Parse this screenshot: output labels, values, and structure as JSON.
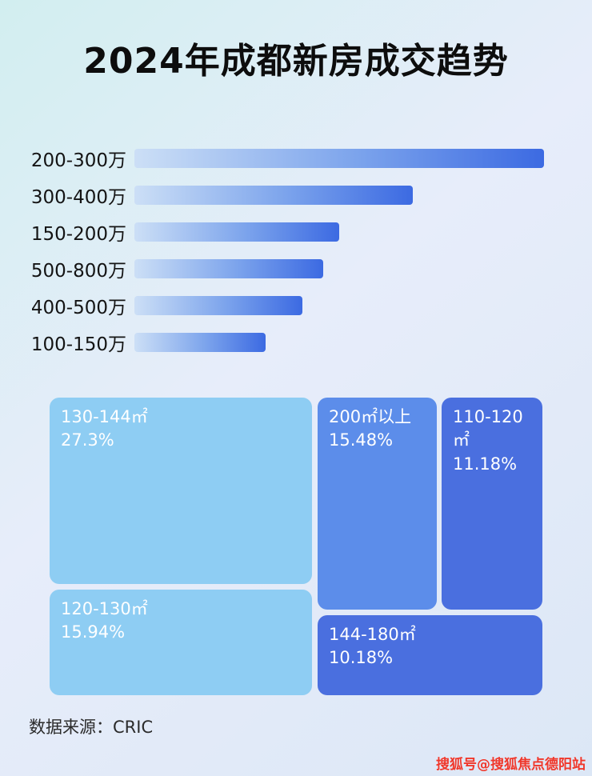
{
  "header": {
    "title": "2024年成都新房成交趋势"
  },
  "footer": {
    "source": "数据来源：CRIC",
    "watermark": "搜狐号@搜狐焦点德阳站"
  },
  "colors": {
    "bar_gradient_start": "#ccdff6",
    "bar_gradient_end": "#3c6ae2",
    "treemap_light": "#8ecdf3",
    "treemap_medium": "#5c8dea",
    "treemap_dark": "#4a6fdf"
  },
  "chart_data": [
    {
      "type": "bar",
      "orientation": "horizontal",
      "title": "2024年成都新房成交趋势",
      "categories": [
        "200-300万",
        "300-400万",
        "150-200万",
        "500-800万",
        "400-500万",
        "100-150万"
      ],
      "values": [
        100,
        68,
        50,
        46,
        41,
        32
      ],
      "value_note": "no numeric labels shown; values estimated as relative bar length, longest = 100",
      "xlabel": "",
      "ylabel": "",
      "grid": false,
      "legend": false
    },
    {
      "type": "treemap",
      "title": "",
      "items": [
        {
          "label": "130-144㎡",
          "percent": "27.3%",
          "value": 27.3
        },
        {
          "label": "200㎡以上",
          "percent": "15.48%",
          "value": 15.48
        },
        {
          "label": "110-120㎡",
          "percent": "11.18%",
          "value": 11.18
        },
        {
          "label": "120-130㎡",
          "percent": "15.94%",
          "value": 15.94
        },
        {
          "label": "144-180㎡",
          "percent": "10.18%",
          "value": 10.18
        }
      ]
    }
  ]
}
